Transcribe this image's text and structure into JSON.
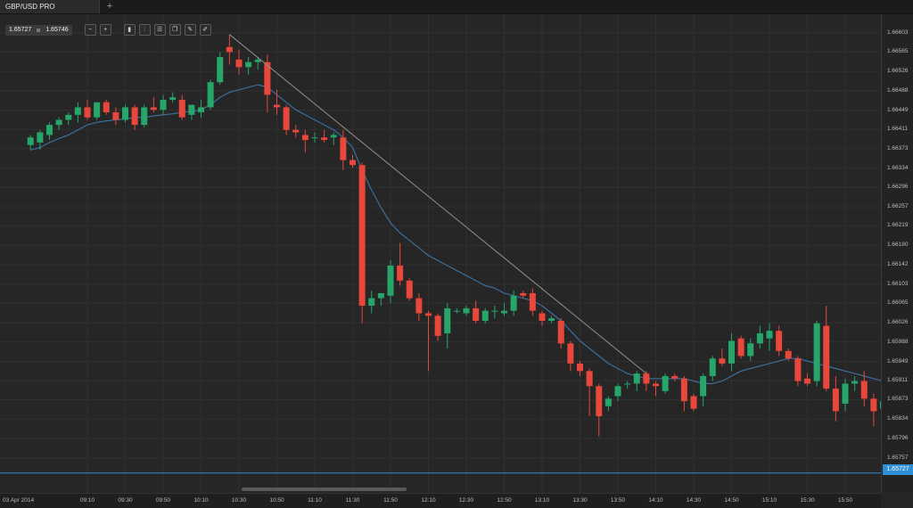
{
  "tab": {
    "title": "GBP/USD PRO",
    "add_icon": "+"
  },
  "toolbar": {
    "bid": "1.65727",
    "ask": "1.65746",
    "tools": [
      {
        "name": "zoom-out-icon",
        "glyph": "−"
      },
      {
        "name": "zoom-in-icon",
        "glyph": "+"
      },
      {
        "name": "chart-type-icon",
        "glyph": "▮"
      },
      {
        "name": "candles-icon",
        "glyph": "⫶"
      },
      {
        "name": "settings-icon",
        "glyph": "☰"
      },
      {
        "name": "template-icon",
        "glyph": "❐"
      },
      {
        "name": "edit-icon",
        "glyph": "✎"
      },
      {
        "name": "draw-icon",
        "glyph": "✐"
      }
    ]
  },
  "price_axis": {
    "ticks": [
      "1.66603",
      "1.66565",
      "1.66526",
      "1.66488",
      "1.66449",
      "1.66411",
      "1.66373",
      "1.66334",
      "1.66296",
      "1.66257",
      "1.66219",
      "1.66180",
      "1.66142",
      "1.66103",
      "1.66065",
      "1.66026",
      "1.65988",
      "1.65949",
      "1.65911",
      "1.65873",
      "1.65834",
      "1.65796",
      "1.65757"
    ],
    "current_price": "1.65727"
  },
  "time_axis": {
    "ticks": [
      "03 Apr 2014",
      "09:10",
      "09:30",
      "09:50",
      "10:10",
      "10:30",
      "10:50",
      "11:10",
      "11:30",
      "11:50",
      "12:10",
      "12:30",
      "12:50",
      "13:10",
      "13:30",
      "13:50",
      "14:10",
      "14:30",
      "14:50",
      "15:10",
      "15:30",
      "15:50"
    ]
  },
  "colors": {
    "up": "#26a66a",
    "down": "#e8473c",
    "ma": "#3d6e9e",
    "trendline": "#8f8f8f",
    "price_line": "#2f8fd6"
  },
  "chart_data": {
    "type": "candlestick",
    "instrument": "GBP/USD",
    "interval_minutes": 5,
    "ylim": [
      1.6572,
      1.6662
    ],
    "candles": [
      {
        "t": "08:40",
        "o": 1.6638,
        "h": 1.664,
        "l": 1.6637,
        "c": 1.66395
      },
      {
        "t": "08:45",
        "o": 1.66385,
        "h": 1.6641,
        "l": 1.6637,
        "c": 1.66405
      },
      {
        "t": "08:50",
        "o": 1.664,
        "h": 1.66425,
        "l": 1.6639,
        "c": 1.6642
      },
      {
        "t": "08:55",
        "o": 1.6642,
        "h": 1.66435,
        "l": 1.6641,
        "c": 1.6643
      },
      {
        "t": "09:00",
        "o": 1.6643,
        "h": 1.66445,
        "l": 1.6642,
        "c": 1.6644
      },
      {
        "t": "09:05",
        "o": 1.6644,
        "h": 1.66465,
        "l": 1.66425,
        "c": 1.66455
      },
      {
        "t": "09:10",
        "o": 1.66455,
        "h": 1.6647,
        "l": 1.6643,
        "c": 1.66435
      },
      {
        "t": "09:15",
        "o": 1.66435,
        "h": 1.66465,
        "l": 1.6643,
        "c": 1.66465
      },
      {
        "t": "09:20",
        "o": 1.66465,
        "h": 1.6647,
        "l": 1.6644,
        "c": 1.66445
      },
      {
        "t": "09:25",
        "o": 1.66445,
        "h": 1.66455,
        "l": 1.6642,
        "c": 1.6643
      },
      {
        "t": "09:30",
        "o": 1.6643,
        "h": 1.6646,
        "l": 1.66425,
        "c": 1.66455
      },
      {
        "t": "09:35",
        "o": 1.66455,
        "h": 1.6646,
        "l": 1.6641,
        "c": 1.6642
      },
      {
        "t": "09:40",
        "o": 1.6642,
        "h": 1.6646,
        "l": 1.66415,
        "c": 1.66455
      },
      {
        "t": "09:45",
        "o": 1.66455,
        "h": 1.66475,
        "l": 1.66445,
        "c": 1.6645
      },
      {
        "t": "09:50",
        "o": 1.6645,
        "h": 1.6648,
        "l": 1.6644,
        "c": 1.6647
      },
      {
        "t": "09:55",
        "o": 1.6647,
        "h": 1.66485,
        "l": 1.66465,
        "c": 1.66475
      },
      {
        "t": "10:00",
        "o": 1.6647,
        "h": 1.6648,
        "l": 1.6643,
        "c": 1.66435
      },
      {
        "t": "10:05",
        "o": 1.6644,
        "h": 1.6646,
        "l": 1.6643,
        "c": 1.6646
      },
      {
        "t": "10:10",
        "o": 1.66445,
        "h": 1.6647,
        "l": 1.66435,
        "c": 1.66455
      },
      {
        "t": "10:15",
        "o": 1.66455,
        "h": 1.6651,
        "l": 1.6645,
        "c": 1.66505
      },
      {
        "t": "10:20",
        "o": 1.66505,
        "h": 1.66565,
        "l": 1.665,
        "c": 1.66555
      },
      {
        "t": "10:25",
        "o": 1.66575,
        "h": 1.666,
        "l": 1.6654,
        "c": 1.66565
      },
      {
        "t": "10:30",
        "o": 1.6655,
        "h": 1.6657,
        "l": 1.6652,
        "c": 1.66535
      },
      {
        "t": "10:35",
        "o": 1.66535,
        "h": 1.66555,
        "l": 1.6652,
        "c": 1.66545
      },
      {
        "t": "10:40",
        "o": 1.66545,
        "h": 1.66555,
        "l": 1.6653,
        "c": 1.6655
      },
      {
        "t": "10:45",
        "o": 1.66545,
        "h": 1.6656,
        "l": 1.66445,
        "c": 1.6648
      },
      {
        "t": "10:50",
        "o": 1.6646,
        "h": 1.6649,
        "l": 1.6644,
        "c": 1.66455
      },
      {
        "t": "10:55",
        "o": 1.66455,
        "h": 1.6646,
        "l": 1.664,
        "c": 1.6641
      },
      {
        "t": "11:00",
        "o": 1.6641,
        "h": 1.6642,
        "l": 1.66395,
        "c": 1.66405
      },
      {
        "t": "11:05",
        "o": 1.664,
        "h": 1.6641,
        "l": 1.66365,
        "c": 1.6639
      },
      {
        "t": "11:10",
        "o": 1.66395,
        "h": 1.66405,
        "l": 1.66385,
        "c": 1.66395
      },
      {
        "t": "11:15",
        "o": 1.66395,
        "h": 1.6641,
        "l": 1.66385,
        "c": 1.6639
      },
      {
        "t": "11:20",
        "o": 1.66395,
        "h": 1.66405,
        "l": 1.6638,
        "c": 1.664
      },
      {
        "t": "11:25",
        "o": 1.66395,
        "h": 1.6641,
        "l": 1.6633,
        "c": 1.6635
      },
      {
        "t": "11:30",
        "o": 1.6635,
        "h": 1.6636,
        "l": 1.66335,
        "c": 1.6634
      },
      {
        "t": "11:35",
        "o": 1.6634,
        "h": 1.66345,
        "l": 1.66025,
        "c": 1.6606
      },
      {
        "t": "11:40",
        "o": 1.6606,
        "h": 1.6609,
        "l": 1.66045,
        "c": 1.66075
      },
      {
        "t": "11:45",
        "o": 1.66075,
        "h": 1.66085,
        "l": 1.6606,
        "c": 1.66085
      },
      {
        "t": "11:50",
        "o": 1.6608,
        "h": 1.6615,
        "l": 1.66065,
        "c": 1.6614
      },
      {
        "t": "11:55",
        "o": 1.6614,
        "h": 1.66185,
        "l": 1.661,
        "c": 1.6611
      },
      {
        "t": "12:00",
        "o": 1.6611,
        "h": 1.66115,
        "l": 1.6607,
        "c": 1.66075
      },
      {
        "t": "12:05",
        "o": 1.66075,
        "h": 1.66085,
        "l": 1.6603,
        "c": 1.66045
      },
      {
        "t": "12:10",
        "o": 1.66045,
        "h": 1.6605,
        "l": 1.6593,
        "c": 1.6604
      },
      {
        "t": "12:15",
        "o": 1.6604,
        "h": 1.66045,
        "l": 1.6599,
        "c": 1.66
      },
      {
        "t": "12:20",
        "o": 1.66005,
        "h": 1.66065,
        "l": 1.65975,
        "c": 1.66055
      },
      {
        "t": "12:25",
        "o": 1.6605,
        "h": 1.66055,
        "l": 1.66045,
        "c": 1.6605
      },
      {
        "t": "12:30",
        "o": 1.66045,
        "h": 1.6606,
        "l": 1.6604,
        "c": 1.66055
      },
      {
        "t": "12:35",
        "o": 1.66055,
        "h": 1.6607,
        "l": 1.66025,
        "c": 1.6603
      },
      {
        "t": "12:40",
        "o": 1.6603,
        "h": 1.66055,
        "l": 1.66025,
        "c": 1.6605
      },
      {
        "t": "12:45",
        "o": 1.6605,
        "h": 1.6606,
        "l": 1.66035,
        "c": 1.6605
      },
      {
        "t": "12:50",
        "o": 1.66045,
        "h": 1.66065,
        "l": 1.6604,
        "c": 1.6605
      },
      {
        "t": "12:55",
        "o": 1.6605,
        "h": 1.6609,
        "l": 1.6604,
        "c": 1.6608
      },
      {
        "t": "13:00",
        "o": 1.66085,
        "h": 1.6609,
        "l": 1.66075,
        "c": 1.6608
      },
      {
        "t": "13:05",
        "o": 1.66085,
        "h": 1.66095,
        "l": 1.6604,
        "c": 1.6605
      },
      {
        "t": "13:10",
        "o": 1.66045,
        "h": 1.6605,
        "l": 1.6602,
        "c": 1.6603
      },
      {
        "t": "13:15",
        "o": 1.6603,
        "h": 1.6604,
        "l": 1.66025,
        "c": 1.66035
      },
      {
        "t": "13:20",
        "o": 1.6603,
        "h": 1.66035,
        "l": 1.65975,
        "c": 1.65985
      },
      {
        "t": "13:25",
        "o": 1.65985,
        "h": 1.6599,
        "l": 1.6593,
        "c": 1.65945
      },
      {
        "t": "13:30",
        "o": 1.65945,
        "h": 1.6595,
        "l": 1.6592,
        "c": 1.6593
      },
      {
        "t": "13:35",
        "o": 1.6593,
        "h": 1.65935,
        "l": 1.6584,
        "c": 1.659
      },
      {
        "t": "13:40",
        "o": 1.659,
        "h": 1.65905,
        "l": 1.658,
        "c": 1.6584
      },
      {
        "t": "13:45",
        "o": 1.6586,
        "h": 1.6588,
        "l": 1.6585,
        "c": 1.65875
      },
      {
        "t": "13:50",
        "o": 1.6588,
        "h": 1.65905,
        "l": 1.6587,
        "c": 1.659
      },
      {
        "t": "13:55",
        "o": 1.65905,
        "h": 1.6591,
        "l": 1.65895,
        "c": 1.65905
      },
      {
        "t": "14:00",
        "o": 1.65905,
        "h": 1.6593,
        "l": 1.6589,
        "c": 1.65925
      },
      {
        "t": "14:05",
        "o": 1.65925,
        "h": 1.6593,
        "l": 1.6589,
        "c": 1.65905
      },
      {
        "t": "14:10",
        "o": 1.65905,
        "h": 1.6591,
        "l": 1.6588,
        "c": 1.659
      },
      {
        "t": "14:15",
        "o": 1.6589,
        "h": 1.65925,
        "l": 1.65885,
        "c": 1.6592
      },
      {
        "t": "14:20",
        "o": 1.6592,
        "h": 1.65925,
        "l": 1.6591,
        "c": 1.65915
      },
      {
        "t": "14:25",
        "o": 1.65915,
        "h": 1.6592,
        "l": 1.6585,
        "c": 1.6587
      },
      {
        "t": "14:30",
        "o": 1.6588,
        "h": 1.65885,
        "l": 1.6585,
        "c": 1.65855
      },
      {
        "t": "14:35",
        "o": 1.6588,
        "h": 1.65925,
        "l": 1.6586,
        "c": 1.6592
      },
      {
        "t": "14:40",
        "o": 1.6592,
        "h": 1.6596,
        "l": 1.6591,
        "c": 1.65955
      },
      {
        "t": "14:45",
        "o": 1.65955,
        "h": 1.65975,
        "l": 1.6594,
        "c": 1.65945
      },
      {
        "t": "14:50",
        "o": 1.65945,
        "h": 1.66005,
        "l": 1.6593,
        "c": 1.6599
      },
      {
        "t": "14:55",
        "o": 1.65995,
        "h": 1.66,
        "l": 1.65955,
        "c": 1.6596
      },
      {
        "t": "15:00",
        "o": 1.6596,
        "h": 1.65995,
        "l": 1.6595,
        "c": 1.65985
      },
      {
        "t": "15:05",
        "o": 1.65985,
        "h": 1.6602,
        "l": 1.65975,
        "c": 1.66005
      },
      {
        "t": "15:10",
        "o": 1.65995,
        "h": 1.66025,
        "l": 1.6597,
        "c": 1.6601
      },
      {
        "t": "15:15",
        "o": 1.6601,
        "h": 1.6602,
        "l": 1.6596,
        "c": 1.6597
      },
      {
        "t": "15:20",
        "o": 1.6597,
        "h": 1.65975,
        "l": 1.6595,
        "c": 1.65955
      },
      {
        "t": "15:25",
        "o": 1.65955,
        "h": 1.6596,
        "l": 1.659,
        "c": 1.6591
      },
      {
        "t": "15:30",
        "o": 1.65915,
        "h": 1.65925,
        "l": 1.659,
        "c": 1.65905
      },
      {
        "t": "15:35",
        "o": 1.6591,
        "h": 1.6603,
        "l": 1.659,
        "c": 1.66025
      },
      {
        "t": "15:40",
        "o": 1.6602,
        "h": 1.6606,
        "l": 1.6589,
        "c": 1.65895
      },
      {
        "t": "15:45",
        "o": 1.65895,
        "h": 1.6592,
        "l": 1.6583,
        "c": 1.6585
      },
      {
        "t": "15:50",
        "o": 1.65865,
        "h": 1.65915,
        "l": 1.6585,
        "c": 1.65905
      },
      {
        "t": "15:55",
        "o": 1.65905,
        "h": 1.6592,
        "l": 1.6589,
        "c": 1.6591
      },
      {
        "t": "16:00",
        "o": 1.6591,
        "h": 1.6593,
        "l": 1.6586,
        "c": 1.65875
      },
      {
        "t": "16:05",
        "o": 1.65875,
        "h": 1.65885,
        "l": 1.6582,
        "c": 1.6585
      },
      {
        "t": "16:10",
        "o": 1.65855,
        "h": 1.6588,
        "l": 1.6584,
        "c": 1.6587
      },
      {
        "t": "16:15",
        "o": 1.65875,
        "h": 1.65885,
        "l": 1.6581,
        "c": 1.65835
      },
      {
        "t": "16:20",
        "o": 1.6584,
        "h": 1.6586,
        "l": 1.6579,
        "c": 1.658
      }
    ],
    "moving_average": [
      1.6637,
      1.66375,
      1.66385,
      1.66393,
      1.664,
      1.6641,
      1.6642,
      1.66425,
      1.66428,
      1.6643,
      1.66432,
      1.66435,
      1.66435,
      1.66438,
      1.6644,
      1.66442,
      1.66445,
      1.66447,
      1.6645,
      1.6646,
      1.66475,
      1.66485,
      1.6649,
      1.66495,
      1.665,
      1.66495,
      1.6648,
      1.66465,
      1.6645,
      1.6644,
      1.6643,
      1.6642,
      1.6641,
      1.66395,
      1.66375,
      1.6633,
      1.6629,
      1.66255,
      1.66225,
      1.66205,
      1.6619,
      1.66175,
      1.6616,
      1.6615,
      1.6614,
      1.6613,
      1.6612,
      1.6611,
      1.661,
      1.66095,
      1.66085,
      1.6608,
      1.66075,
      1.6607,
      1.6606,
      1.66045,
      1.6603,
      1.6601,
      1.6599,
      1.65975,
      1.6596,
      1.65945,
      1.65935,
      1.65925,
      1.6592,
      1.65915,
      1.65915,
      1.65915,
      1.65915,
      1.65915,
      1.6591,
      1.65905,
      1.65905,
      1.6591,
      1.6592,
      1.6593,
      1.65935,
      1.6594,
      1.65945,
      1.6595,
      1.65955,
      1.65955,
      1.6595,
      1.65945,
      1.6594,
      1.65935,
      1.6593,
      1.65925,
      1.6592,
      1.65915,
      1.6591,
      1.659,
      1.65885
    ],
    "trendline": {
      "from": {
        "t": "10:25",
        "price": 1.666
      },
      "to": {
        "t": "14:05",
        "price": 1.65925
      }
    },
    "current_price": 1.65727
  }
}
